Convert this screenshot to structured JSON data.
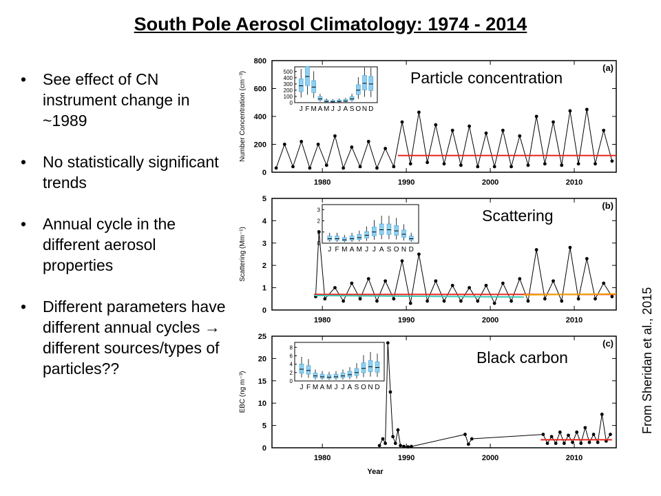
{
  "slide": {
    "title": "South Pole Aerosol Climatology: 1974 - 2014",
    "bullets": [
      "See effect of CN instrument change in ~1989",
      "No statistically significant trends",
      "Annual cycle in the different aerosol properties",
      "Different parameters have different annual cycles → different sources/types of particles??"
    ],
    "credit": "From Sheridan et al., 2015"
  },
  "colors": {
    "series": "#000000",
    "trend_red": "#e8251f",
    "trend_cyan": "#3cc8b4",
    "trend_orange": "#f0a000",
    "box_fill": "#8fd0f0"
  },
  "chart_data": [
    {
      "type": "line",
      "panel_label": "(a)",
      "title": "Particle concentration",
      "ylabel": "Number Concentration (cm⁻³)",
      "xlim": [
        1974,
        2015
      ],
      "ylim": [
        0,
        800
      ],
      "xticks": [
        "1980",
        "1990",
        "2000",
        "2010"
      ],
      "yticks": [
        "0",
        "200",
        "400",
        "600",
        "800"
      ],
      "series_points": [
        [
          1974.5,
          30
        ],
        [
          1975.5,
          200
        ],
        [
          1976.5,
          40
        ],
        [
          1977.5,
          220
        ],
        [
          1978.5,
          30
        ],
        [
          1979.5,
          200
        ],
        [
          1980.5,
          50
        ],
        [
          1981.5,
          260
        ],
        [
          1982.5,
          30
        ],
        [
          1983.5,
          180
        ],
        [
          1984.5,
          40
        ],
        [
          1985.5,
          220
        ],
        [
          1986.5,
          30
        ],
        [
          1987.5,
          170
        ],
        [
          1988.5,
          40
        ],
        [
          1989.5,
          360
        ],
        [
          1990.5,
          60
        ],
        [
          1991.5,
          430
        ],
        [
          1992.5,
          70
        ],
        [
          1993.5,
          340
        ],
        [
          1994.5,
          60
        ],
        [
          1995.5,
          300
        ],
        [
          1996.5,
          50
        ],
        [
          1997.5,
          330
        ],
        [
          1998.5,
          40
        ],
        [
          1999.5,
          280
        ],
        [
          2000.5,
          40
        ],
        [
          2001.5,
          300
        ],
        [
          2002.5,
          40
        ],
        [
          2003.5,
          260
        ],
        [
          2004.5,
          50
        ],
        [
          2005.5,
          400
        ],
        [
          2006.5,
          60
        ],
        [
          2007.5,
          360
        ],
        [
          2008.5,
          50
        ],
        [
          2009.5,
          440
        ],
        [
          2010.5,
          60
        ],
        [
          2011.5,
          450
        ],
        [
          2012.5,
          60
        ],
        [
          2013.5,
          300
        ],
        [
          2014.5,
          80
        ]
      ],
      "trend_lines": [
        {
          "color": "red",
          "x": [
            1989,
            2015
          ],
          "y": [
            120,
            120
          ]
        }
      ],
      "inset": {
        "months": [
          "J",
          "F",
          "M",
          "A",
          "M",
          "J",
          "J",
          "A",
          "S",
          "O",
          "N",
          "D"
        ],
        "ytick_labels": [
          "0",
          "100",
          "200",
          "300",
          "400",
          "500"
        ],
        "medians": [
          270,
          420,
          250,
          60,
          20,
          15,
          20,
          25,
          60,
          200,
          310,
          300
        ]
      }
    },
    {
      "type": "line",
      "panel_label": "(b)",
      "title": "Scattering",
      "ylabel": "Scattering (Mm⁻¹)",
      "xlim": [
        1974,
        2015
      ],
      "ylim": [
        0,
        5
      ],
      "xticks": [
        "1980",
        "1990",
        "2000",
        "2010"
      ],
      "yticks": [
        "0",
        "1",
        "2",
        "3",
        "4",
        "5"
      ],
      "series_points": [
        [
          1979.2,
          0.6
        ],
        [
          1979.6,
          3.5
        ],
        [
          1980.3,
          0.5
        ],
        [
          1981.5,
          1.0
        ],
        [
          1982.5,
          0.4
        ],
        [
          1983.5,
          1.2
        ],
        [
          1984.5,
          0.5
        ],
        [
          1985.5,
          1.4
        ],
        [
          1986.5,
          0.4
        ],
        [
          1987.5,
          1.3
        ],
        [
          1988.5,
          0.5
        ],
        [
          1989.5,
          2.2
        ],
        [
          1990.5,
          0.3
        ],
        [
          1991.5,
          2.5
        ],
        [
          1992.5,
          0.4
        ],
        [
          1993.5,
          1.3
        ],
        [
          1994.5,
          0.4
        ],
        [
          1995.5,
          1.1
        ],
        [
          1996.5,
          0.4
        ],
        [
          1997.5,
          1.0
        ],
        [
          1998.5,
          0.4
        ],
        [
          1999.5,
          1.1
        ],
        [
          2000.5,
          0.3
        ],
        [
          2001.5,
          1.2
        ],
        [
          2002.5,
          0.4
        ],
        [
          2003.5,
          1.4
        ],
        [
          2004.5,
          0.4
        ],
        [
          2005.5,
          2.7
        ],
        [
          2006.5,
          0.5
        ],
        [
          2007.5,
          1.3
        ],
        [
          2008.5,
          0.4
        ],
        [
          2009.5,
          2.8
        ],
        [
          2010.5,
          0.5
        ],
        [
          2011.5,
          2.3
        ],
        [
          2012.5,
          0.5
        ],
        [
          2013.5,
          1.2
        ],
        [
          2014.5,
          0.6
        ]
      ],
      "trend_lines": [
        {
          "color": "red",
          "x": [
            1979,
            2015
          ],
          "y": [
            0.7,
            0.7
          ]
        },
        {
          "color": "cyan",
          "x": [
            1979,
            2004
          ],
          "y": [
            0.65,
            0.58
          ]
        },
        {
          "color": "orange",
          "x": [
            2004,
            2015
          ],
          "y": [
            0.68,
            0.72
          ]
        }
      ],
      "inset": {
        "months": [
          "J",
          "F",
          "M",
          "A",
          "M",
          "J",
          "J",
          "A",
          "S",
          "O",
          "N",
          "D"
        ],
        "ytick_labels": [
          "0",
          "1",
          "2",
          "3"
        ],
        "medians": [
          0.4,
          0.4,
          0.3,
          0.4,
          0.5,
          0.7,
          1.0,
          1.2,
          1.2,
          1.1,
          0.8,
          0.4
        ]
      }
    },
    {
      "type": "line",
      "panel_label": "(c)",
      "title": "Black carbon",
      "ylabel": "EBC (ng m⁻³)",
      "xlabel": "Year",
      "xlim": [
        1974,
        2015
      ],
      "ylim": [
        0,
        25
      ],
      "xticks": [
        "1980",
        "1990",
        "2000",
        "2010"
      ],
      "yticks": [
        "0",
        "5",
        "10",
        "15",
        "20",
        "25"
      ],
      "series_points": [
        [
          1986.8,
          0.5
        ],
        [
          1987.2,
          2.0
        ],
        [
          1987.5,
          1.0
        ],
        [
          1987.8,
          23.5
        ],
        [
          1988.1,
          12.5
        ],
        [
          1988.4,
          2.5
        ],
        [
          1988.7,
          1.0
        ],
        [
          1989.0,
          4.0
        ],
        [
          1989.3,
          0.5
        ],
        [
          1989.7,
          0.3
        ],
        [
          1990.2,
          0.2
        ],
        [
          1990.6,
          0.3
        ],
        [
          1997.0,
          3.0
        ],
        [
          1997.4,
          0.8
        ],
        [
          1997.8,
          2.0
        ],
        [
          2006.3,
          3.0
        ],
        [
          2006.8,
          1.0
        ],
        [
          2007.3,
          2.5
        ],
        [
          2007.8,
          1.0
        ],
        [
          2008.3,
          3.5
        ],
        [
          2008.8,
          1.0
        ],
        [
          2009.3,
          2.8
        ],
        [
          2009.8,
          1.2
        ],
        [
          2010.3,
          3.5
        ],
        [
          2010.8,
          1.0
        ],
        [
          2011.3,
          4.5
        ],
        [
          2011.8,
          1.2
        ],
        [
          2012.3,
          3.0
        ],
        [
          2012.8,
          1.2
        ],
        [
          2013.3,
          7.5
        ],
        [
          2013.8,
          1.5
        ],
        [
          2014.3,
          3.0
        ]
      ],
      "trend_lines": [
        {
          "color": "red",
          "x": [
            2006,
            2014.5
          ],
          "y": [
            1.8,
            1.8
          ]
        }
      ],
      "inset": {
        "months": [
          "J",
          "F",
          "M",
          "A",
          "M",
          "J",
          "J",
          "A",
          "S",
          "O",
          "N",
          "D"
        ],
        "ytick_labels": [
          "0",
          "2",
          "4",
          "6",
          "8"
        ],
        "medians": [
          2.8,
          2.5,
          1.2,
          1.0,
          0.9,
          1.0,
          1.2,
          1.5,
          2.0,
          3.0,
          3.4,
          3.2
        ]
      }
    }
  ]
}
